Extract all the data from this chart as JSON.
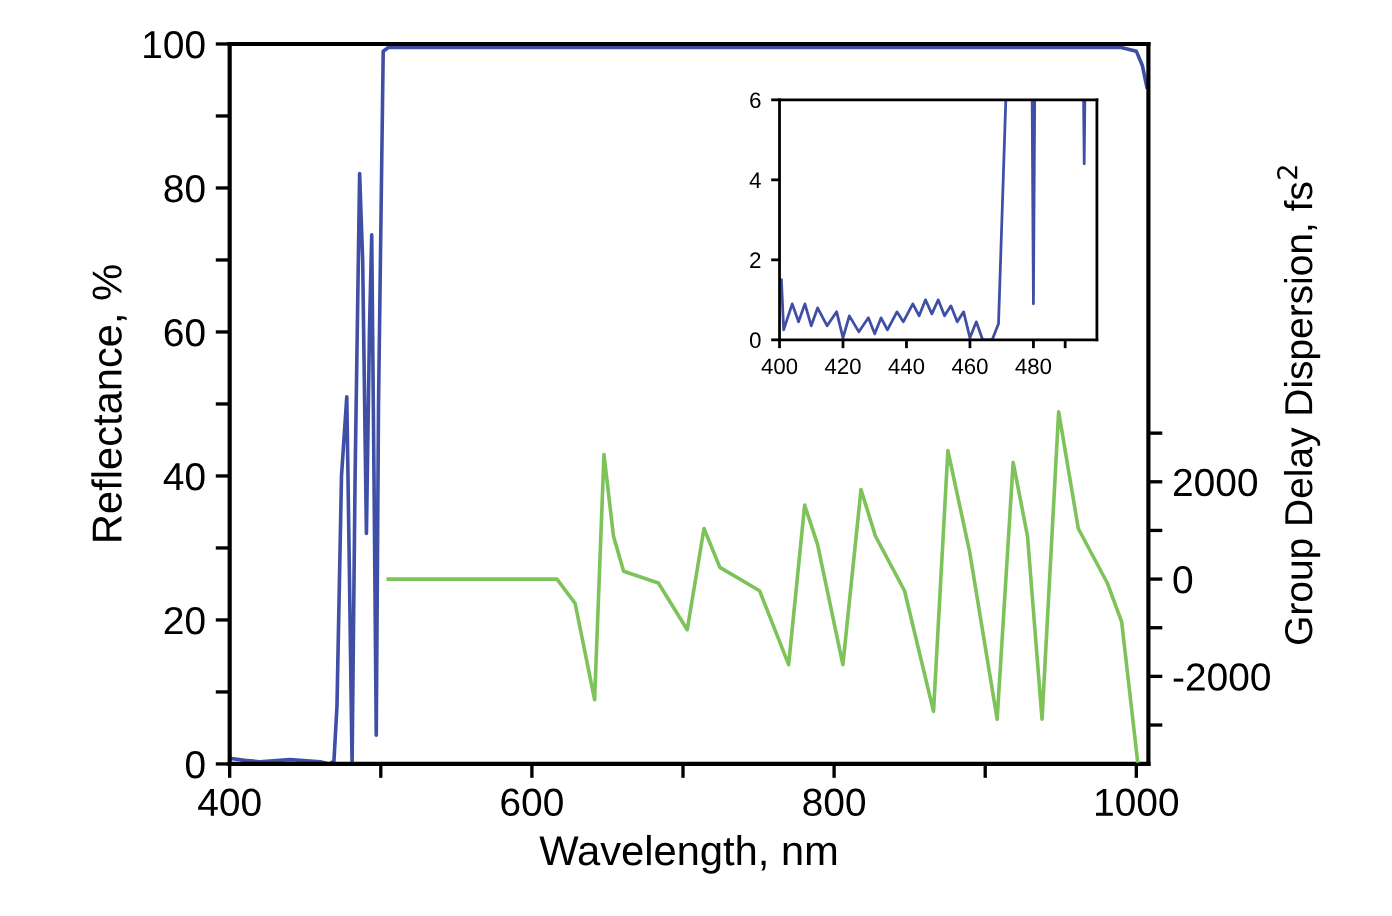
{
  "chart_data": [
    {
      "type": "line",
      "xlabel": "Wavelength, nm",
      "ylabel": "Reflectance, %",
      "y2label": "Group Delay Dispersion, fs$^{2}$",
      "xlim": [
        400,
        1008
      ],
      "xticks": [
        400,
        {
          "value": 500,
          "label": null
        },
        600,
        {
          "value": 700,
          "label": null
        },
        800,
        {
          "value": 900,
          "label": null
        },
        1000
      ],
      "ylim": [
        0,
        100
      ],
      "yticks": [
        0,
        {
          "value": 10,
          "label": null
        },
        20,
        {
          "value": 30,
          "label": null
        },
        40,
        {
          "value": 50,
          "label": null
        },
        60,
        {
          "value": 70,
          "label": null
        },
        80,
        {
          "value": 90,
          "label": null
        },
        100
      ],
      "y2lim": [
        -3800,
        11000
      ],
      "y2ticks": [
        {
          "value": -3000,
          "label": null
        },
        -2000,
        {
          "value": -1000,
          "label": null
        },
        0,
        {
          "value": 1000,
          "label": null
        },
        2000,
        {
          "value": 3000,
          "label": null
        }
      ],
      "series": [
        {
          "color": "#3f4fa6",
          "x": [
            400,
            410,
            420,
            440,
            460,
            466,
            469,
            471,
            474,
            477.5,
            479,
            481,
            483,
            486,
            488,
            490.5,
            492.5,
            494,
            495.5,
            497,
            498.5,
            501.6,
            505,
            600,
            800,
            990,
            1000,
            1004,
            1007
          ],
          "values": [
            0.8,
            0.5,
            0.3,
            0.6,
            0.3,
            0,
            0.4,
            8,
            40,
            51,
            30,
            0,
            40,
            82,
            70,
            32,
            60,
            73.5,
            40,
            4,
            50,
            99,
            99.5,
            99.5,
            99.5,
            99.5,
            99,
            97,
            94
          ]
        },
        {
          "color": "#7dc35a",
          "axis": "y2",
          "x": [
            505,
            616.6,
            628.6,
            641.5,
            647.7,
            654,
            660.7,
            683.7,
            702.8,
            713.9,
            724.4,
            750.7,
            769.9,
            780.5,
            789,
            805.8,
            817.8,
            827.4,
            846.6,
            865.8,
            875.3,
            889.7,
            907.9,
            918.5,
            928,
            937.6,
            948.6,
            961.6,
            980.8,
            990.3,
            1000.9
          ],
          "values": [
            0,
            0,
            -500,
            -2480,
            2560,
            880,
            160,
            -80,
            -1040,
            1040,
            240,
            -240,
            -1760,
            1520,
            720,
            -1760,
            1840,
            880,
            -240,
            -2720,
            2640,
            560,
            -2880,
            2400,
            880,
            -2880,
            3440,
            1040,
            -80,
            -880,
            -3760
          ]
        }
      ]
    },
    {
      "type": "line",
      "xlim": [
        400,
        500
      ],
      "xticks": [
        400,
        420,
        440,
        460,
        480,
        {
          "value": 490,
          "label": null
        }
      ],
      "ylim": [
        0,
        6
      ],
      "yticks": [
        0,
        2,
        4,
        6
      ],
      "series": [
        {
          "color": "#3f4fa6",
          "x": [
            400.6,
            401.3,
            404,
            406,
            408,
            410,
            412,
            415,
            418,
            420,
            422,
            425,
            428,
            430,
            432,
            434,
            437,
            439,
            442,
            444,
            446,
            448,
            450,
            452,
            454,
            456,
            458,
            460,
            462,
            464,
            467,
            469,
            471.3,
            475,
            479.6,
            480,
            480.4,
            490,
            495.8,
            496,
            496.2
          ],
          "values": [
            1.5,
            0.25,
            0.9,
            0.45,
            0.9,
            0.35,
            0.8,
            0.35,
            0.7,
            0.05,
            0.6,
            0.2,
            0.55,
            0.15,
            0.55,
            0.25,
            0.7,
            0.45,
            0.9,
            0.6,
            1.0,
            0.65,
            1.0,
            0.6,
            0.85,
            0.45,
            0.7,
            0.05,
            0.45,
            0,
            0,
            0.4,
            6,
            null,
            6,
            0.9,
            6,
            null,
            6,
            4.4,
            6
          ]
        }
      ]
    }
  ]
}
